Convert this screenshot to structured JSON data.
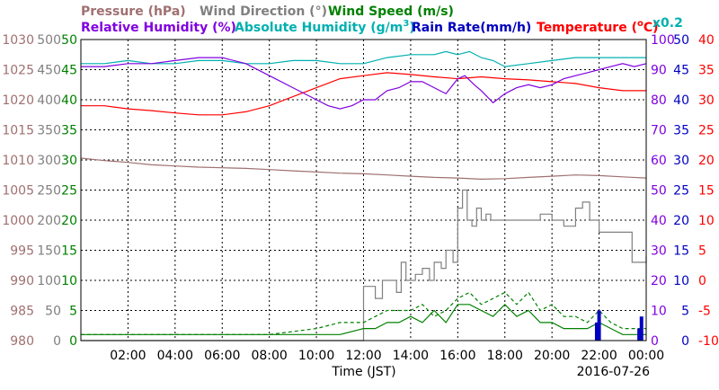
{
  "chart_data": {
    "type": "line",
    "date_label": "2016-07-26",
    "xlabel": "Time (JST)",
    "x_ticks": [
      "02:00",
      "04:00",
      "06:00",
      "08:00",
      "10:00",
      "12:00",
      "14:00",
      "16:00",
      "18:00",
      "20:00",
      "22:00",
      "00:00"
    ],
    "x_range_hours": [
      0,
      24
    ],
    "headers": {
      "pressure": "Pressure (hPa)",
      "wind_direction": "Wind Direction (°)",
      "wind_speed": "Wind Speed (m/s)",
      "relative_humidity": "Relative Humidity (%)",
      "absolute_humidity_pre": "Absolute Humidity (g/m",
      "absolute_humidity_sup": "3",
      "absolute_humidity_post": ")",
      "rain_rate": "Rain Rate(mm/h)",
      "temperature_pre": "Temperature (",
      "temperature_deg": "o",
      "temperature_post": "C)",
      "multiplier": "x0.2"
    },
    "axes": {
      "pressure": {
        "ticks": [
          "1030",
          "1025",
          "1020",
          "1015",
          "1010",
          "1005",
          "1000",
          "995",
          "990",
          "985",
          "980"
        ],
        "range": [
          980,
          1030
        ],
        "color": "#a07070"
      },
      "wind_direction": {
        "ticks": [
          "500",
          "450",
          "400",
          "350",
          "300",
          "250",
          "200",
          "150",
          "100",
          "50",
          "0"
        ],
        "range": [
          0,
          500
        ],
        "color": "#808080"
      },
      "wind_speed": {
        "ticks": [
          "50",
          "45",
          "40",
          "35",
          "30",
          "25",
          "20",
          "15",
          "10",
          "5",
          "0"
        ],
        "range": [
          0,
          50
        ],
        "color": "#008000"
      },
      "relative_humidity": {
        "ticks": [
          "100",
          "90",
          "80",
          "70",
          "60",
          "50",
          "40",
          "30",
          "20",
          "10",
          "0"
        ],
        "range": [
          0,
          100
        ],
        "color": "#8000e0"
      },
      "rain_rate": {
        "ticks": [
          "50",
          "45",
          "40",
          "35",
          "30",
          "25",
          "20",
          "15",
          "10",
          "5",
          "0"
        ],
        "range": [
          0,
          50
        ],
        "color": "#0000c0"
      },
      "temperature": {
        "ticks": [
          "40",
          "35",
          "30",
          "25",
          "20",
          "15",
          "10",
          "5",
          "0",
          "-5",
          "-10"
        ],
        "range": [
          -10,
          40
        ],
        "color": "#ff0000"
      },
      "absolute_humidity_color": "#00b0b0"
    },
    "series": [
      {
        "name": "Relative Humidity",
        "color": "#8000e0",
        "axis": "relative_humidity",
        "x": [
          0,
          1,
          2,
          3,
          4,
          5,
          6,
          7,
          8,
          9,
          10,
          10.5,
          11,
          11.5,
          12,
          12.5,
          13,
          13.5,
          14,
          14.5,
          15,
          15.5,
          16,
          16.3,
          16.7,
          17,
          17.5,
          18,
          18.5,
          19,
          19.5,
          20,
          20.5,
          21,
          21.5,
          22,
          22.5,
          23,
          23.5,
          24
        ],
        "y": [
          91,
          91,
          92,
          92,
          93,
          94,
          94,
          92,
          88,
          84,
          80,
          78,
          77,
          78,
          80,
          80,
          83,
          84,
          86,
          86,
          84,
          82,
          87,
          88,
          85,
          83,
          79,
          82,
          84,
          85,
          84,
          85,
          87,
          88,
          89,
          90,
          91,
          92,
          91,
          92
        ]
      },
      {
        "name": "Absolute Humidity",
        "color": "#00b0b0",
        "axis": "relative_humidity",
        "x": [
          0,
          1,
          2,
          3,
          4,
          5,
          6,
          7,
          8,
          9,
          10,
          11,
          12,
          13,
          14,
          15,
          15.5,
          16,
          16.5,
          17,
          17.5,
          18,
          19,
          20,
          21,
          22,
          23,
          24
        ],
        "y": [
          92,
          92,
          93,
          92,
          92,
          93,
          93,
          92,
          92,
          93,
          93,
          92,
          92,
          94,
          95,
          95,
          96,
          95,
          96,
          94,
          93,
          91,
          92,
          93,
          94,
          94,
          94,
          94
        ],
        "y_note": "read on the 0-100 scale"
      },
      {
        "name": "Wind Speed",
        "color": "#008000",
        "axis": "wind_speed",
        "x": [
          0,
          1,
          2,
          3,
          4,
          5,
          6,
          7,
          8,
          9,
          10,
          11,
          12,
          12.5,
          13,
          13.5,
          14,
          14.5,
          15,
          15.5,
          16,
          16.5,
          17,
          17.5,
          18,
          18.5,
          19,
          19.5,
          20,
          20.5,
          21,
          21.5,
          22,
          22.5,
          23,
          23.5,
          24
        ],
        "y": [
          1,
          1,
          1,
          1,
          1,
          1,
          1,
          1,
          1,
          1,
          1,
          1,
          2,
          2,
          3,
          3,
          4,
          3,
          5,
          3,
          6,
          6,
          5,
          4,
          6,
          4,
          5,
          3,
          3,
          2,
          2,
          2,
          3,
          2,
          1,
          1,
          1
        ]
      },
      {
        "name": "Wind Speed gust",
        "color": "#008000",
        "axis": "wind_speed",
        "dashed": true,
        "x": [
          0,
          2,
          4,
          6,
          8,
          10,
          11,
          12,
          12.5,
          13,
          13.5,
          14,
          14.5,
          15,
          15.5,
          16,
          16.5,
          17,
          17.5,
          18,
          18.5,
          19,
          19.5,
          20,
          20.5,
          21,
          21.5,
          22,
          22.5,
          23,
          23.5,
          24
        ],
        "y": [
          1,
          1,
          1,
          1,
          1,
          2,
          3,
          3,
          4,
          5,
          5,
          5,
          6,
          4,
          5,
          7,
          8,
          6,
          7,
          8,
          6,
          8,
          5,
          6,
          4,
          4,
          3,
          5,
          3,
          2,
          2,
          2
        ]
      },
      {
        "name": "Wind Direction",
        "color": "#808080",
        "axis": "wind_direction",
        "step": true,
        "x": [
          0,
          12,
          12.3,
          12.5,
          12.8,
          13,
          13.2,
          13.4,
          13.6,
          13.8,
          14,
          14.2,
          14.5,
          14.8,
          15,
          15.3,
          15.5,
          15.8,
          16,
          16.2,
          16.4,
          16.6,
          16.8,
          17,
          17.2,
          17.4,
          17.6,
          17.8,
          18,
          18.5,
          19,
          19.5,
          20,
          20.5,
          21,
          21.3,
          21.6,
          22,
          22.5,
          23,
          23.4,
          24
        ],
        "y": [
          0,
          90,
          90,
          70,
          100,
          100,
          100,
          80,
          130,
          100,
          100,
          110,
          120,
          100,
          130,
          120,
          150,
          130,
          220,
          250,
          200,
          190,
          220,
          200,
          210,
          200,
          200,
          200,
          200,
          200,
          200,
          210,
          200,
          190,
          220,
          230,
          200,
          180,
          180,
          180,
          130,
          140
        ]
      },
      {
        "name": "Temperature",
        "color": "#ff0000",
        "axis": "temperature",
        "x": [
          0,
          1,
          2,
          3,
          4,
          5,
          6,
          7,
          8,
          9,
          10,
          11,
          12,
          13,
          14,
          15,
          16,
          17,
          18,
          19,
          20,
          21,
          22,
          23,
          24
        ],
        "y": [
          29,
          29,
          28.5,
          28.2,
          27.8,
          27.5,
          27.5,
          28,
          29,
          30.5,
          32,
          33.5,
          34,
          34.5,
          34.2,
          33.8,
          33.5,
          33.8,
          33.5,
          33.3,
          33,
          32.7,
          32,
          31.5,
          31.5
        ]
      },
      {
        "name": "Pressure",
        "color": "#a07070",
        "axis": "pressure",
        "x": [
          0,
          1,
          2,
          3,
          4,
          5,
          6,
          7,
          8,
          9,
          10,
          11,
          12,
          13,
          14,
          15,
          16,
          17,
          18,
          19,
          20,
          21,
          22,
          23,
          24
        ],
        "y": [
          1010.3,
          1009.9,
          1009.6,
          1009.2,
          1009.0,
          1008.8,
          1008.7,
          1008.6,
          1008.4,
          1008.2,
          1008.0,
          1007.8,
          1007.7,
          1007.5,
          1007.3,
          1007.1,
          1007.0,
          1006.8,
          1006.9,
          1007.1,
          1007.3,
          1007.5,
          1007.4,
          1007.2,
          1007.0
        ]
      },
      {
        "name": "Rain Rate",
        "color": "#0000c0",
        "axis": "rain_rate",
        "bars": true,
        "x": [
          21.9,
          22.0,
          23.7,
          23.8
        ],
        "y": [
          3,
          5,
          2,
          4
        ]
      }
    ]
  }
}
